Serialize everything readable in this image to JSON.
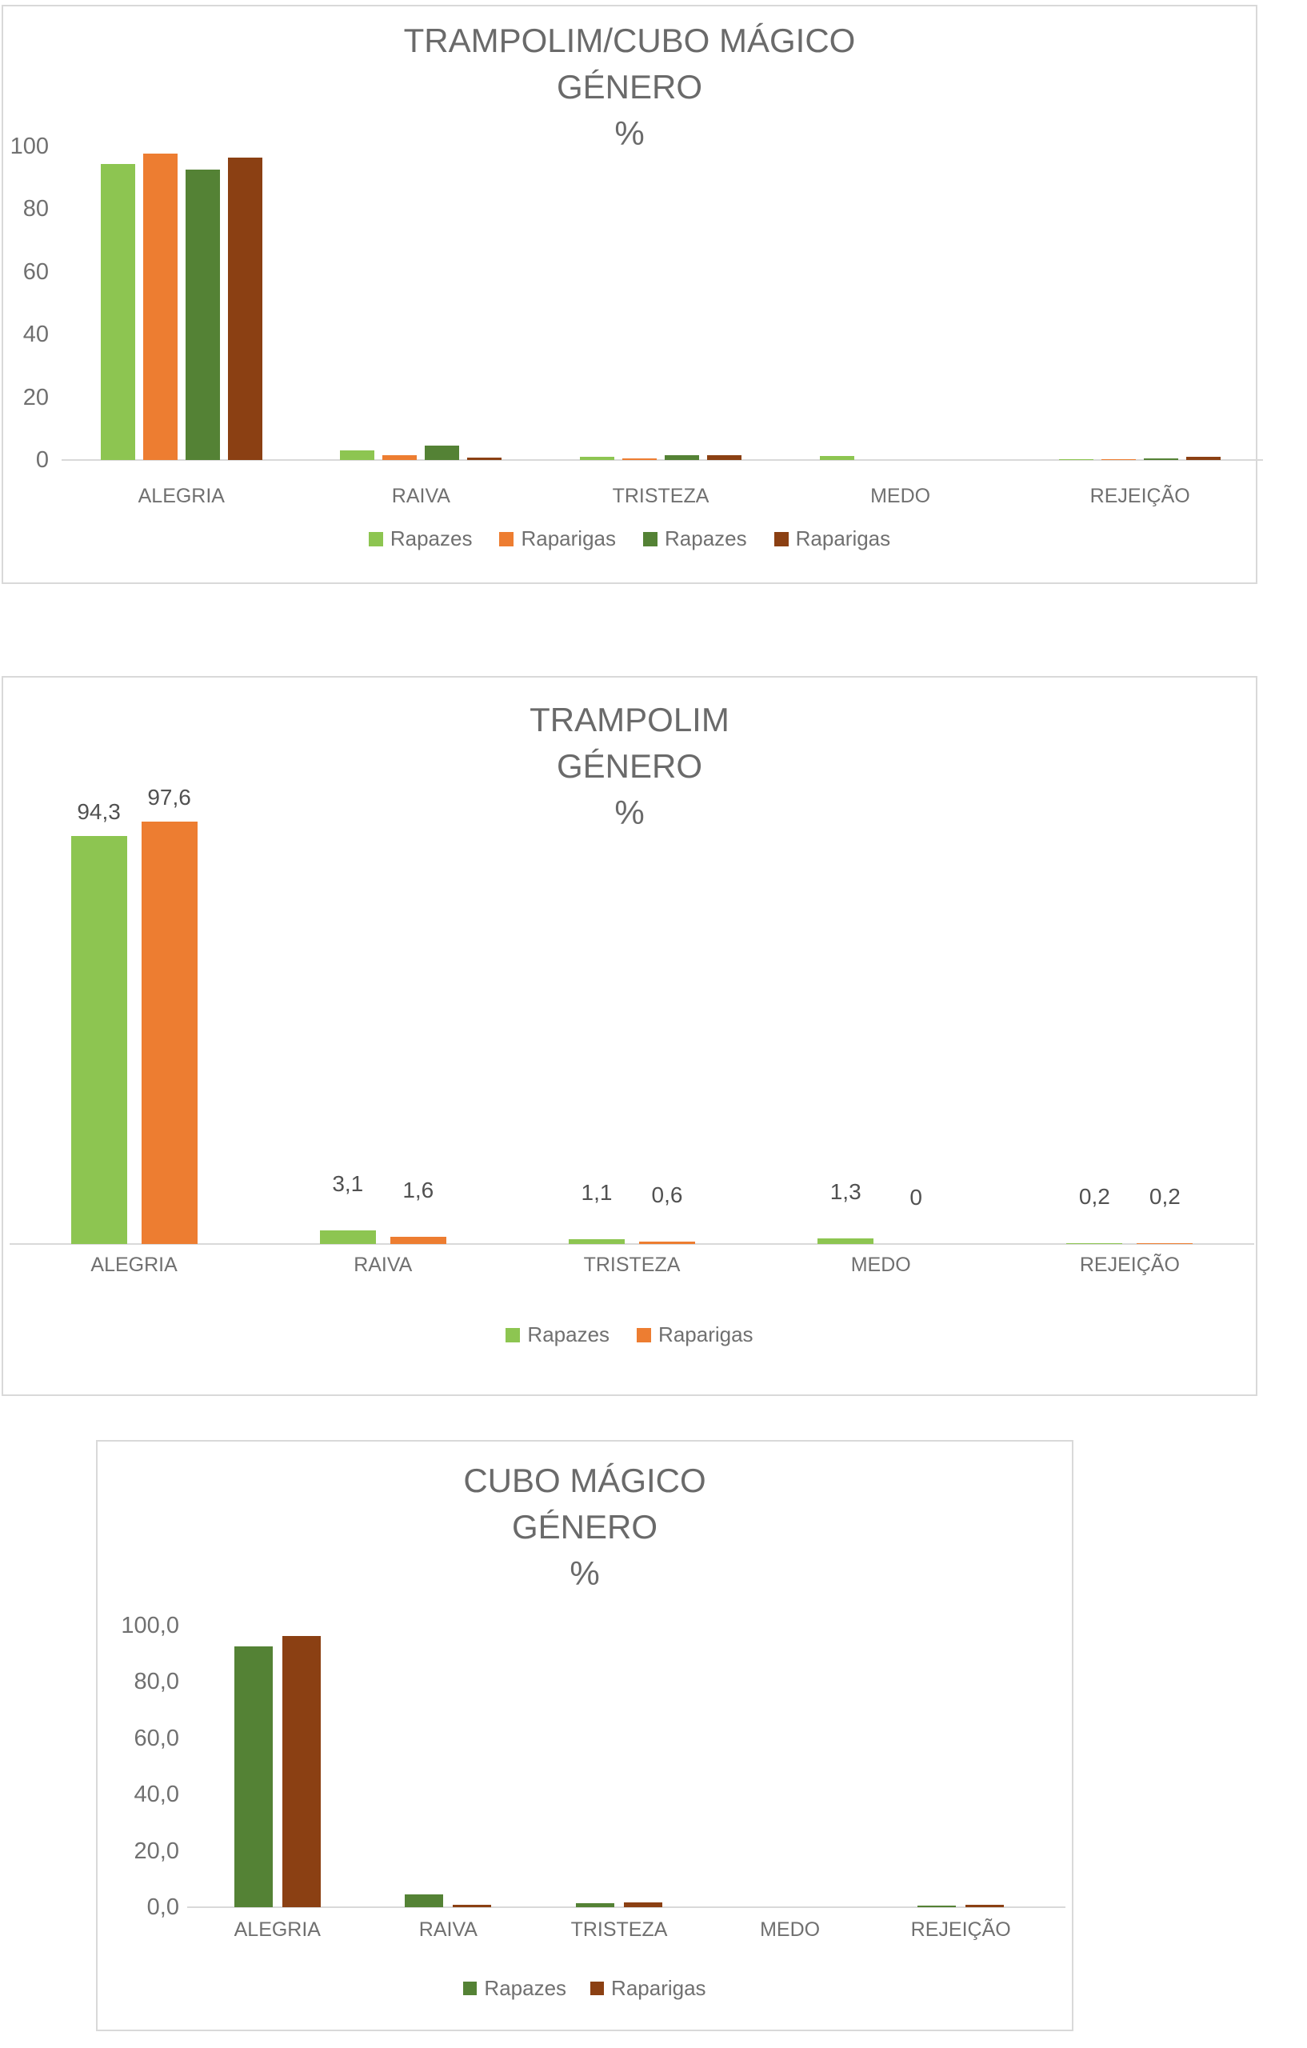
{
  "colors": {
    "light_green": "#8dc551",
    "orange": "#ed7d31",
    "dark_green": "#548235",
    "brown": "#8b4013",
    "axis_line": "#d9d9d9",
    "chart_border": "#d9d9d9",
    "title_text": "#6a6a6a",
    "axis_text": "#707070",
    "data_label_text": "#515151"
  },
  "chart_data": [
    {
      "type": "bar",
      "title": "TRAMPOLIM/CUBO MÁGICO GÉNERO %",
      "title_lines": [
        "TRAMPOLIM/CUBO MÁGICO",
        "GÉNERO",
        "%"
      ],
      "categories": [
        "ALEGRIA",
        "RAIVA",
        "TRISTEZA",
        "MEDO",
        "REJEIÇÃO"
      ],
      "y_ticks": [
        "0",
        "20",
        "40",
        "60",
        "80",
        "100"
      ],
      "ylim": [
        0,
        100
      ],
      "grid": false,
      "legend_position": "bottom",
      "data_labels": false,
      "series": [
        {
          "name": "Rapazes",
          "color": "light_green",
          "values": [
            94.3,
            3.1,
            1.1,
            1.3,
            0.2
          ]
        },
        {
          "name": "Raparigas",
          "color": "orange",
          "values": [
            97.6,
            1.6,
            0.6,
            0,
            0.2
          ]
        },
        {
          "name": "Rapazes",
          "color": "dark_green",
          "values": [
            92.5,
            4.6,
            1.5,
            0,
            0.6
          ]
        },
        {
          "name": "Raparigas",
          "color": "brown",
          "values": [
            96.4,
            0.8,
            1.6,
            0,
            0.9
          ]
        }
      ]
    },
    {
      "type": "bar",
      "title": "TRAMPOLIM GÉNERO %",
      "title_lines": [
        "TRAMPOLIM",
        "GÉNERO",
        "%"
      ],
      "categories": [
        "ALEGRIA",
        "RAIVA",
        "TRISTEZA",
        "MEDO",
        "REJEIÇÃO"
      ],
      "y_ticks": [],
      "ylim": [
        0,
        100
      ],
      "grid": false,
      "legend_position": "bottom",
      "data_labels": true,
      "series": [
        {
          "name": "Rapazes",
          "color": "light_green",
          "values": [
            94.3,
            3.1,
            1.1,
            1.3,
            0.2
          ],
          "labels": [
            "94,3",
            "3,1",
            "1,1",
            "1,3",
            "0,2"
          ]
        },
        {
          "name": "Raparigas",
          "color": "orange",
          "values": [
            97.6,
            1.6,
            0.6,
            0,
            0.2
          ],
          "labels": [
            "97,6",
            "1,6",
            "0,6",
            "0",
            "0,2"
          ]
        }
      ]
    },
    {
      "type": "bar",
      "title": "CUBO MÁGICO GÉNERO %",
      "title_lines": [
        "CUBO MÁGICO",
        "GÉNERO",
        "%"
      ],
      "categories": [
        "ALEGRIA",
        "RAIVA",
        "TRISTEZA",
        "MEDO",
        "REJEIÇÃO"
      ],
      "y_ticks": [
        "0,0",
        "20,0",
        "40,0",
        "60,0",
        "80,0",
        "100,0"
      ],
      "ylim": [
        0,
        100
      ],
      "grid": false,
      "legend_position": "bottom",
      "data_labels": false,
      "series": [
        {
          "name": "Rapazes",
          "color": "dark_green",
          "values": [
            92.5,
            4.6,
            1.5,
            0,
            0.6
          ]
        },
        {
          "name": "Raparigas",
          "color": "brown",
          "values": [
            96.4,
            0.8,
            1.6,
            0,
            0.9
          ]
        }
      ]
    }
  ]
}
